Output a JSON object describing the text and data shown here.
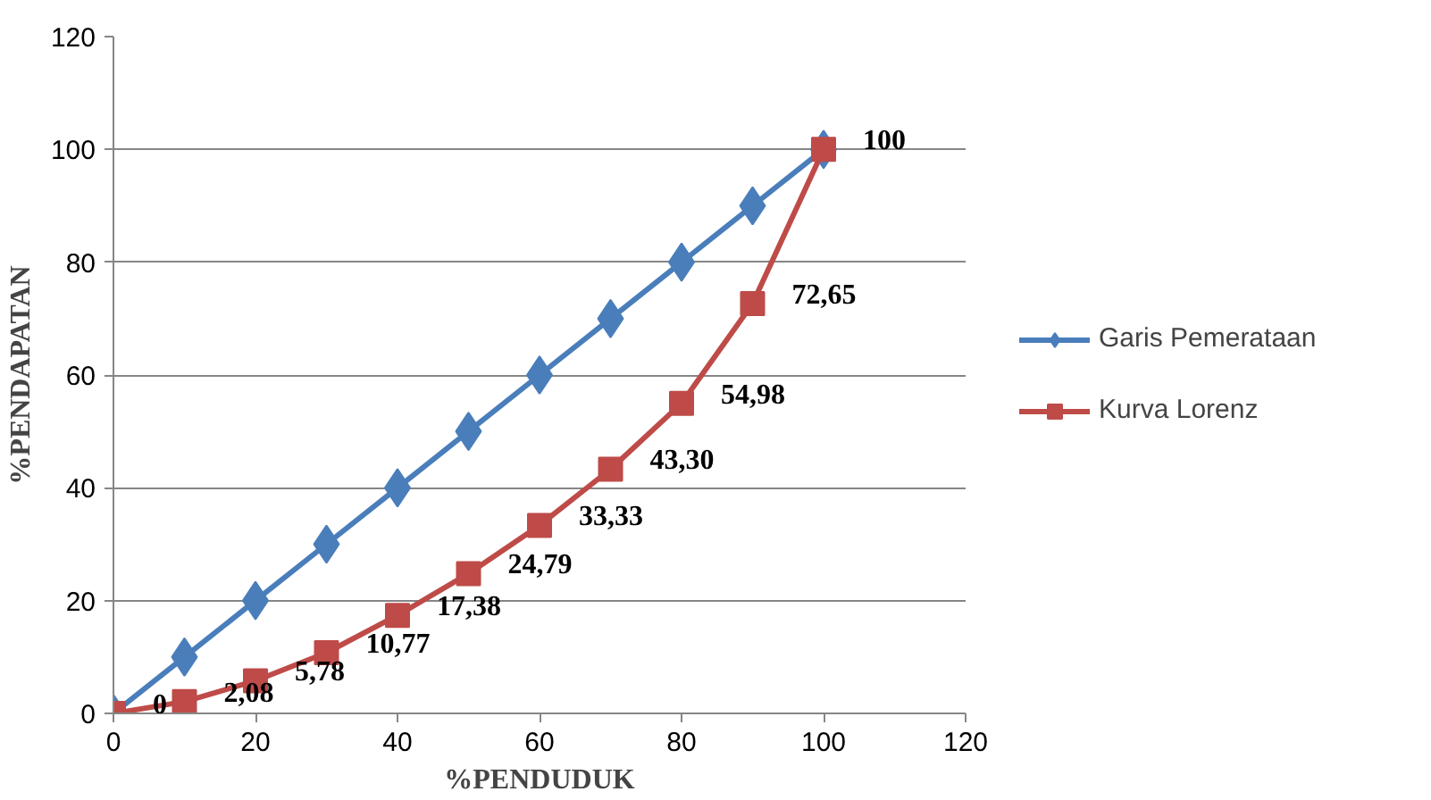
{
  "chart_data": {
    "type": "line",
    "xlabel": "%PENDUDUK",
    "ylabel": "%PENDAPATAN",
    "x": [
      0,
      10,
      20,
      30,
      40,
      50,
      60,
      70,
      80,
      90,
      100
    ],
    "series": [
      {
        "name": "Garis Pemerataan",
        "color": "#4a7ebb",
        "marker": "diamond",
        "values": [
          0,
          10,
          20,
          30,
          40,
          50,
          60,
          70,
          80,
          90,
          100
        ]
      },
      {
        "name": "Kurva Lorenz",
        "color": "#be4b48",
        "marker": "square",
        "values": [
          0,
          2.08,
          5.78,
          10.77,
          17.38,
          24.79,
          33.33,
          43.3,
          54.98,
          72.65,
          100
        ],
        "value_labels": [
          "0",
          "2,08",
          "5,78",
          "10,77",
          "17,38",
          "24,79",
          "33,33",
          "43,30",
          "54,98",
          "72,65",
          "100"
        ]
      }
    ],
    "xlim": [
      0,
      120
    ],
    "ylim": [
      0,
      120
    ],
    "xticks": [
      0,
      20,
      40,
      60,
      80,
      100,
      120
    ],
    "yticks": [
      0,
      20,
      40,
      60,
      80,
      100,
      120
    ],
    "grid": "y",
    "legend": "right",
    "line_style": "solid"
  }
}
